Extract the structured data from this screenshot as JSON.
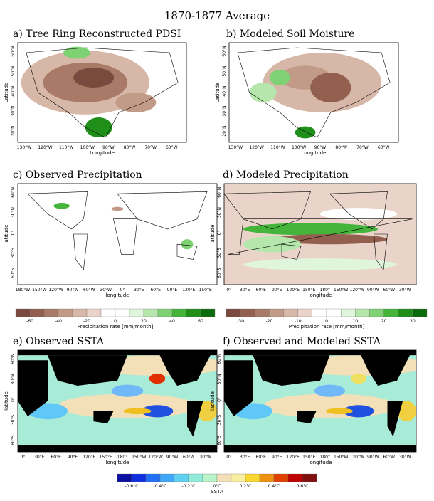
{
  "title": "1870-1877 Average",
  "panels": [
    {
      "label": "a) Tree Ring Reconstructed PDSI",
      "y_label": "Latitude",
      "x_label": "Longitude",
      "y_ticks": [
        "60°N",
        "50°N",
        "40°N",
        "30°N",
        "20°N"
      ],
      "x_ticks": [
        "130°W",
        "120°W",
        "110°W",
        "100°W",
        "90°W",
        "80°W",
        "70°W",
        "60°W"
      ]
    },
    {
      "label": "b) Modeled Soil Moisture",
      "y_label": "Latitude",
      "x_label": "Longitude",
      "y_ticks": [
        "60°N",
        "50°N",
        "40°N",
        "30°N",
        "20°N"
      ],
      "x_ticks": [
        "130°W",
        "120°W",
        "110°W",
        "100°W",
        "90°W",
        "80°W",
        "70°W",
        "60°W"
      ]
    },
    {
      "label": "c) Observed Precipitation",
      "y_label": "latitude",
      "x_label": "longitude",
      "y_ticks": [
        "60°N",
        "30°N",
        "0°",
        "30°S",
        "60°S"
      ],
      "x_ticks": [
        "180°W",
        "150°W",
        "120°W",
        "90°W",
        "60°W",
        "30°W",
        "0°",
        "30°E",
        "60°E",
        "90°E",
        "120°E",
        "150°E"
      ]
    },
    {
      "label": "d) Modeled Precipitation",
      "y_label": "latitude",
      "x_label": "longitude",
      "y_ticks": [
        "60°N",
        "30°N",
        "0°",
        "30°S",
        "60°S"
      ],
      "x_ticks": [
        "0°",
        "30°E",
        "60°E",
        "90°E",
        "120°E",
        "150°E",
        "180°",
        "150°W",
        "120°W",
        "90°W",
        "60°W",
        "30°W"
      ]
    },
    {
      "label": "e) Observed SSTA",
      "y_label": "latitude",
      "x_label": "longitude",
      "y_ticks": [
        "60°N",
        "30°N",
        "0°",
        "30°S",
        "60°S"
      ],
      "x_ticks": [
        "0°",
        "30°E",
        "60°E",
        "90°E",
        "120°E",
        "150°E",
        "180°",
        "150°W",
        "120°W",
        "90°W",
        "60°W",
        "30°W"
      ]
    },
    {
      "label": "f) Observed and Modeled SSTA",
      "y_label": "latitude",
      "x_label": "longitude",
      "y_ticks": [
        "60°N",
        "30°N",
        "0°",
        "30°S",
        "60°S"
      ],
      "x_ticks": [
        "0°",
        "30°E",
        "60°E",
        "90°E",
        "120°E",
        "150°E",
        "180°",
        "150°W",
        "120°W",
        "90°W",
        "60°W",
        "30°W"
      ]
    }
  ],
  "colorbars": [
    {
      "label": "Precipitation rate [mm/month]",
      "ticks": [
        "-60",
        "-40",
        "-20",
        "0",
        "20",
        "40",
        "60"
      ]
    },
    {
      "label": "Precipitation rate [mm/month]",
      "ticks": [
        "-30",
        "-20",
        "-10",
        "0",
        "10",
        "20",
        "30"
      ]
    },
    {
      "label": "SSTA",
      "ticks": [
        "-0.6°C",
        "-0.4°C",
        "-0.2°C",
        "0°C",
        "0.2°C",
        "0.4°C",
        "0.6°C"
      ]
    }
  ]
}
